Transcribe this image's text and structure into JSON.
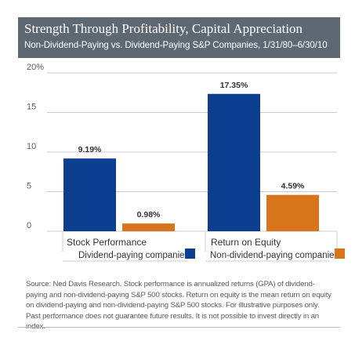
{
  "chart_data": {
    "type": "bar",
    "title": "Strength Through Profitability, Capital Appreciation",
    "subtitle": "Non-Dividend-Paying vs. Dividend-Paying S&P Companies, 1/31/80–6/30/10",
    "categories": [
      "Stock Performance",
      "Return on Equity"
    ],
    "series": [
      {
        "name": "Dividend-paying companies",
        "color": "#0c3f8f",
        "values": [
          9.19,
          17.35
        ],
        "labels": [
          "9.19%",
          "17.35%"
        ]
      },
      {
        "name": "Non-dividend-paying companies",
        "color": "#d8741c",
        "values": [
          0.98,
          4.59
        ],
        "labels": [
          "0.98%",
          "4.59%"
        ]
      }
    ],
    "y_ticks": [
      {
        "value": 0,
        "label": "0"
      },
      {
        "value": 5,
        "label": "5"
      },
      {
        "value": 10,
        "label": "10"
      },
      {
        "value": 15,
        "label": "15"
      },
      {
        "value": 20,
        "label": "20%"
      }
    ],
    "ylim": [
      0,
      20
    ],
    "grid": true,
    "legend_position": "bottom",
    "source": "Source: Ned Davis Research. Stock performance is annualized returns (GPA) of dividend-paying and non-dividend-paying S&P 500 stocks. Return on equity is the mean return on equity on dividend-paying and non-dividend-paying S&P 500 stocks. For illustrative purposes only. Past performance does not guarantee future results. It is not possible to invest directly in an index."
  }
}
